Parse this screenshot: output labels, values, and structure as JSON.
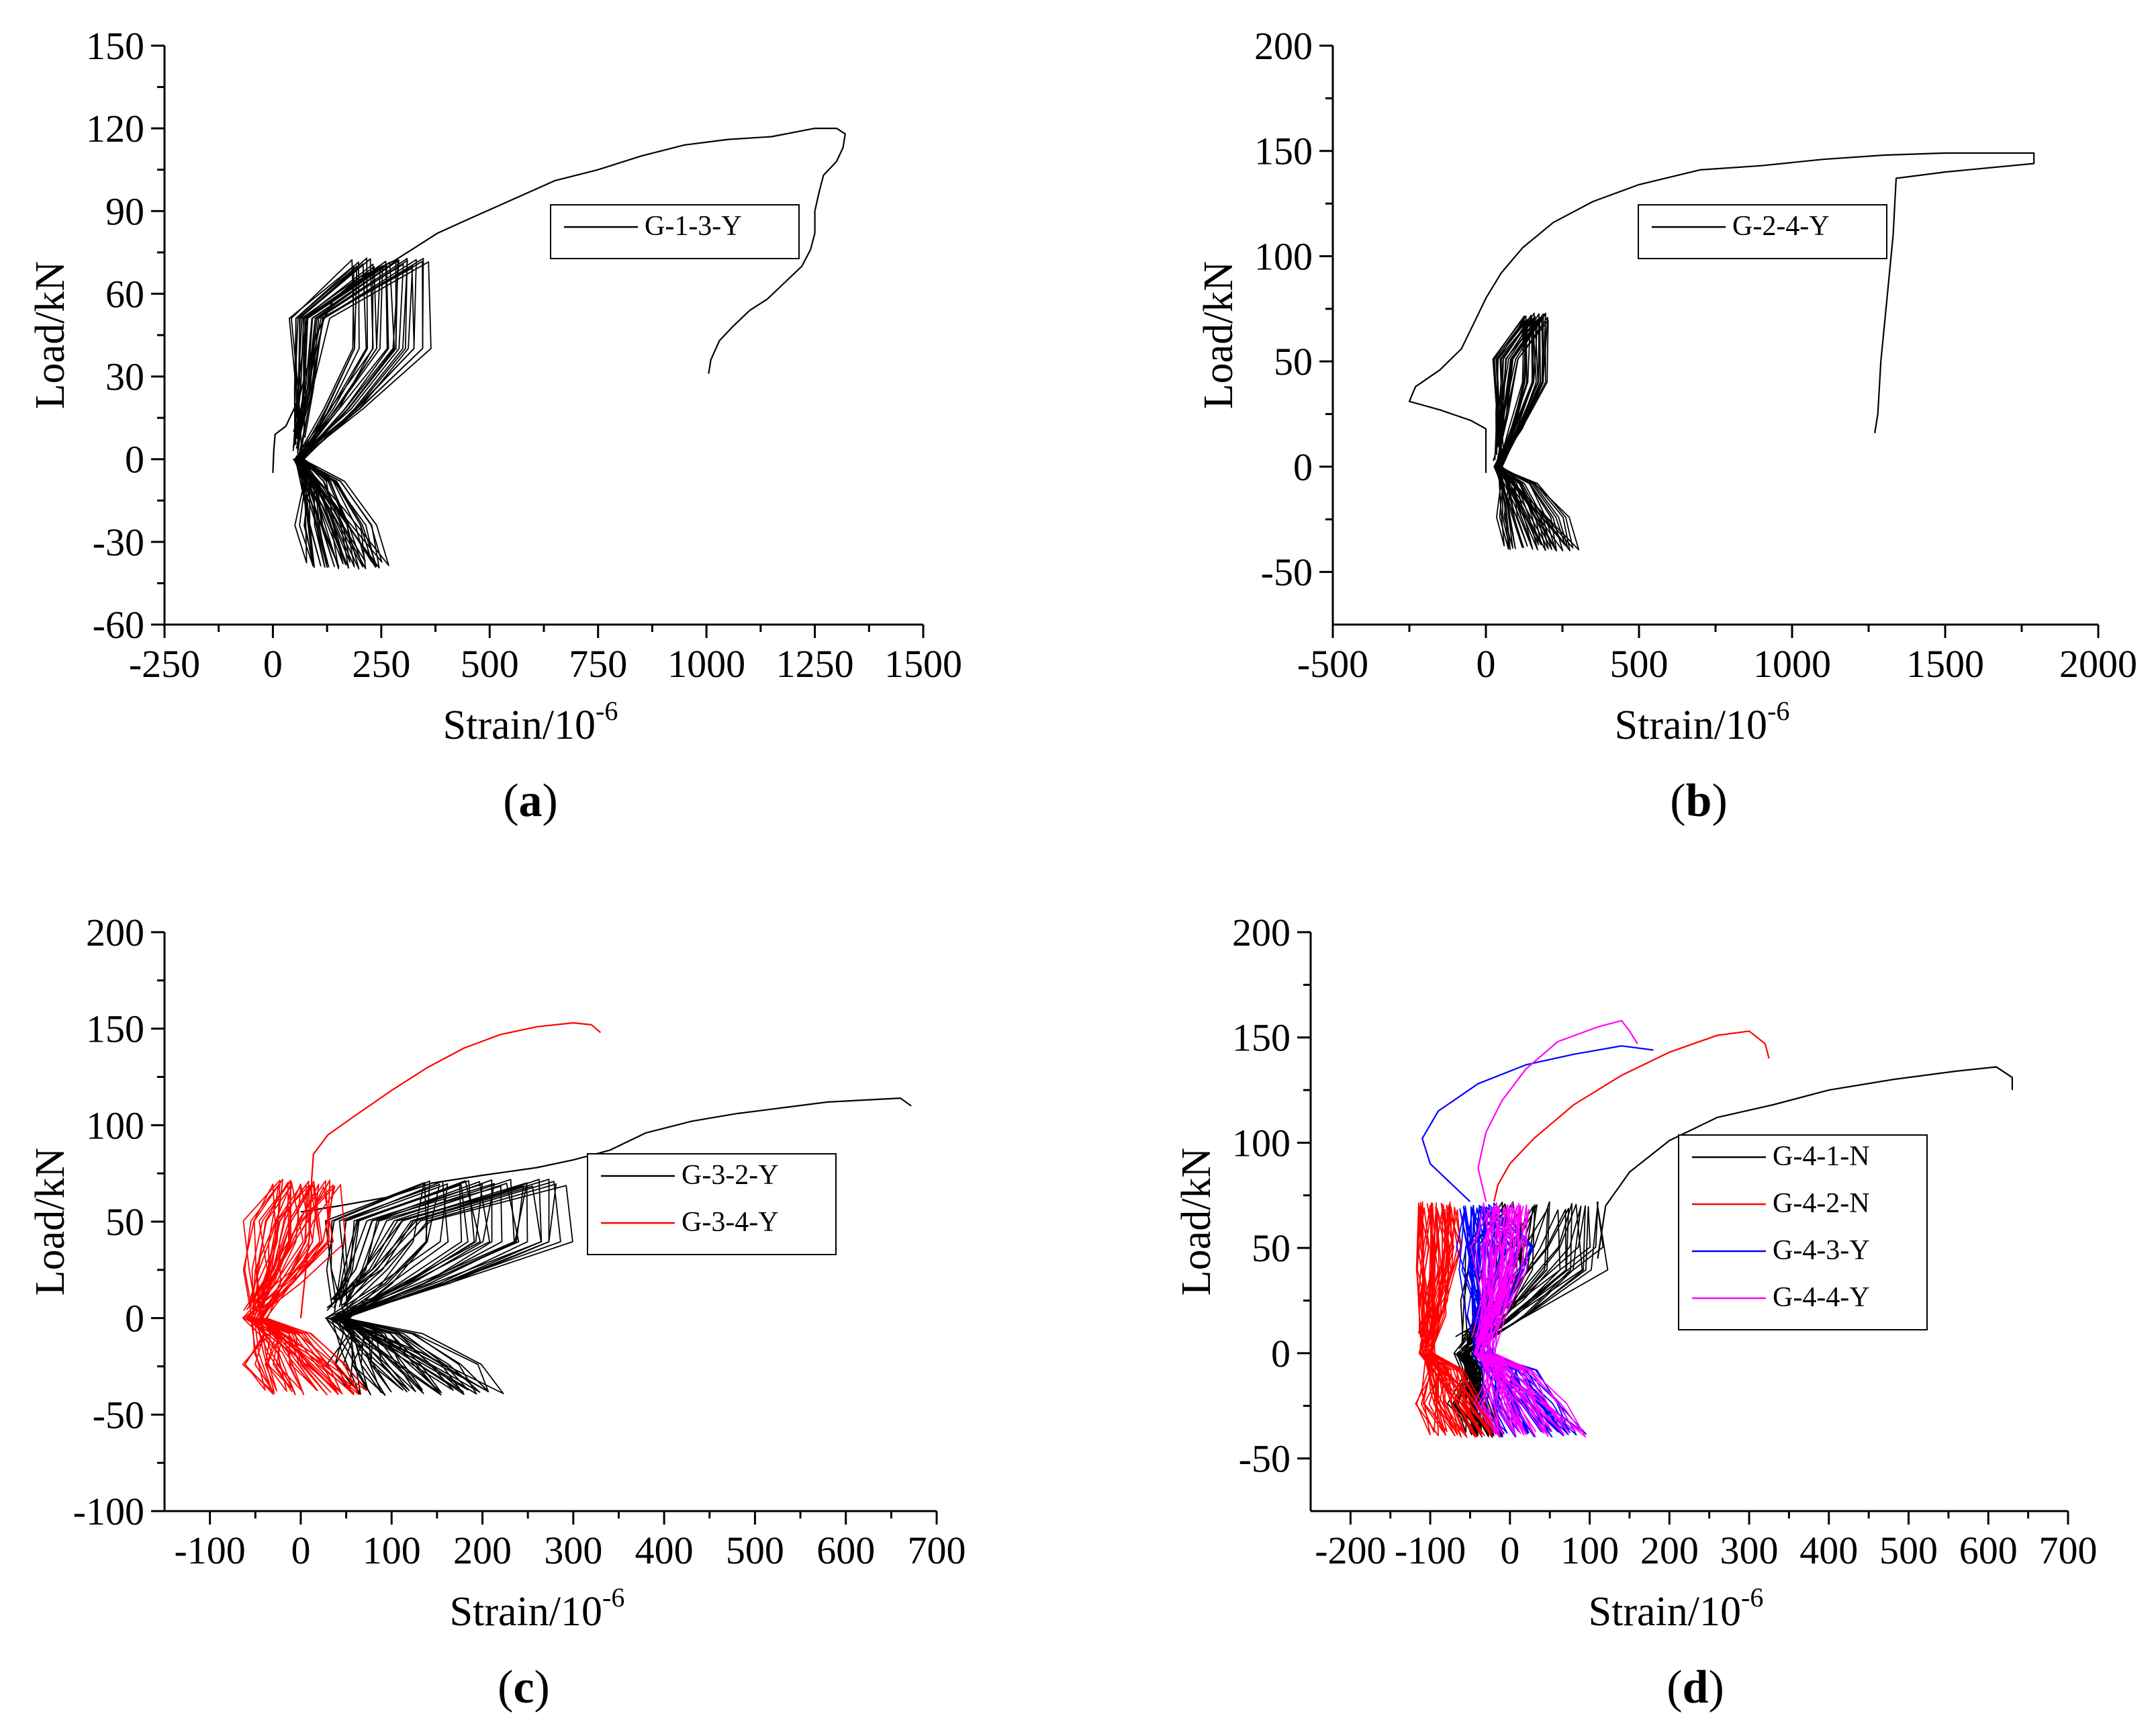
{
  "figure": {
    "panels": [
      "a",
      "b",
      "c",
      "d"
    ]
  },
  "chart_data": [
    {
      "id": "a",
      "type": "line",
      "panel_label": "a",
      "xlabel": "Strain/10",
      "xlabel_exp": "-6",
      "ylabel": "Load/kN",
      "xlim": [
        -250,
        1500
      ],
      "ylim": [
        -60,
        150
      ],
      "xticks": [
        -250,
        0,
        250,
        500,
        750,
        1000,
        1250,
        1500
      ],
      "yticks": [
        -60,
        -30,
        0,
        30,
        60,
        90,
        120,
        150
      ],
      "legend_position": "top-right",
      "series": [
        {
          "name": "G-1-3-Y",
          "color": "#000000",
          "monotonic": [
            [
              0,
              -5
            ],
            [
              2,
              3
            ],
            [
              5,
              9
            ],
            [
              30,
              12
            ],
            [
              60,
              22
            ],
            [
              100,
              45
            ],
            [
              140,
              58
            ],
            [
              200,
              66
            ],
            [
              280,
              72
            ],
            [
              320,
              76
            ],
            [
              380,
              82
            ],
            [
              450,
              87
            ],
            [
              550,
              94
            ],
            [
              650,
              101
            ],
            [
              750,
              105
            ],
            [
              850,
              110
            ],
            [
              950,
              114
            ],
            [
              1050,
              116
            ],
            [
              1150,
              117
            ],
            [
              1250,
              120
            ],
            [
              1300,
              120
            ],
            [
              1320,
              118
            ],
            [
              1315,
              113
            ],
            [
              1300,
              108
            ],
            [
              1270,
              103
            ],
            [
              1260,
              97
            ],
            [
              1250,
              90
            ],
            [
              1250,
              82
            ],
            [
              1240,
              76
            ],
            [
              1220,
              70
            ],
            [
              1180,
              64
            ],
            [
              1140,
              58
            ],
            [
              1100,
              54
            ],
            [
              1060,
              48
            ],
            [
              1030,
              43
            ],
            [
              1010,
              36
            ],
            [
              1005,
              31
            ]
          ],
          "cycles": {
            "count": 26,
            "upper_load": 73,
            "lower_load": -40,
            "pos_x0": 40,
            "pos_x1": 125,
            "neg_x0": 80,
            "neg_x1": 265,
            "upper_x0": 180,
            "upper_x1": 355
          }
        }
      ]
    },
    {
      "id": "b",
      "type": "line",
      "panel_label": "b",
      "xlabel": "Strain/10",
      "xlabel_exp": "-6",
      "ylabel": "Load/kN",
      "xlim": [
        -500,
        2000
      ],
      "ylim": [
        -75,
        200
      ],
      "xticks": [
        -500,
        0,
        500,
        1000,
        1500,
        2000
      ],
      "yticks": [
        -50,
        0,
        50,
        100,
        150,
        200
      ],
      "legend_position": "top-right",
      "series": [
        {
          "name": "G-2-4-Y",
          "color": "#000000",
          "monotonic": [
            [
              0,
              -3
            ],
            [
              0,
              18
            ],
            [
              -50,
              22
            ],
            [
              -150,
              27
            ],
            [
              -250,
              31
            ],
            [
              -230,
              38
            ],
            [
              -150,
              46
            ],
            [
              -80,
              56
            ],
            [
              -40,
              68
            ],
            [
              0,
              80
            ],
            [
              50,
              92
            ],
            [
              120,
              104
            ],
            [
              220,
              116
            ],
            [
              350,
              126
            ],
            [
              500,
              134
            ],
            [
              700,
              141
            ],
            [
              900,
              143
            ],
            [
              1100,
              146
            ],
            [
              1300,
              148
            ],
            [
              1500,
              149
            ],
            [
              1790,
              149
            ],
            [
              1790,
              144
            ],
            [
              1500,
              140
            ],
            [
              1340,
              137
            ],
            [
              1330,
              110
            ],
            [
              1310,
              80
            ],
            [
              1290,
              50
            ],
            [
              1280,
              25
            ],
            [
              1270,
              16
            ]
          ],
          "cycles": {
            "count": 24,
            "upper_load": 73,
            "lower_load": -40,
            "pos_x0": 20,
            "pos_x1": 105,
            "neg_x0": 60,
            "neg_x1": 300,
            "upper_x0": 120,
            "upper_x1": 200
          }
        }
      ]
    },
    {
      "id": "c",
      "type": "line",
      "panel_label": "c",
      "xlabel": "Strain/10",
      "xlabel_exp": "-6",
      "ylabel": "Load/kN",
      "xlim": [
        -150,
        700
      ],
      "ylim": [
        -100,
        200
      ],
      "xticks": [
        -100,
        0,
        100,
        200,
        300,
        400,
        500,
        600,
        700
      ],
      "yticks": [
        -100,
        -50,
        0,
        50,
        100,
        150,
        200
      ],
      "legend_position": "top-right",
      "series": [
        {
          "name": "G-3-2-Y",
          "color": "#000000",
          "monotonic": [
            [
              0,
              55
            ],
            [
              40,
              58
            ],
            [
              100,
              63
            ],
            [
              145,
              70
            ],
            [
              200,
              74
            ],
            [
              260,
              78
            ],
            [
              300,
              82
            ],
            [
              340,
              87
            ],
            [
              380,
              96
            ],
            [
              430,
              102
            ],
            [
              480,
              106
            ],
            [
              530,
              109
            ],
            [
              580,
              112
            ],
            [
              620,
              113
            ],
            [
              660,
              114
            ],
            [
              672,
              110
            ]
          ],
          "cycles": {
            "count": 26,
            "upper_load": 72,
            "lower_load": -40,
            "pos_x0": 30,
            "pos_x1": 140,
            "neg_x0": 55,
            "neg_x1": 220,
            "upper_x0": 130,
            "upper_x1": 290
          }
        },
        {
          "name": "G-3-4-Y",
          "color": "#ff0000",
          "monotonic": [
            [
              0,
              0
            ],
            [
              10,
              45
            ],
            [
              12,
              72
            ],
            [
              14,
              85
            ],
            [
              30,
              95
            ],
            [
              60,
              105
            ],
            [
              100,
              118
            ],
            [
              140,
              130
            ],
            [
              180,
              140
            ],
            [
              220,
              147
            ],
            [
              260,
              151
            ],
            [
              300,
              153
            ],
            [
              320,
              152
            ],
            [
              330,
              148
            ]
          ],
          "cycles": {
            "count": 24,
            "upper_load": 72,
            "lower_load": -40,
            "pos_x0": -60,
            "pos_x1": 15,
            "neg_x0": -40,
            "neg_x1": 75,
            "upper_x0": -30,
            "upper_x1": 40
          }
        }
      ]
    },
    {
      "id": "d",
      "type": "line",
      "panel_label": "d",
      "xlabel": "Strain/10",
      "xlabel_exp": "-6",
      "ylabel": "Load/kN",
      "xlim": [
        -250,
        700
      ],
      "ylim": [
        -75,
        200
      ],
      "xticks": [
        -200,
        -100,
        0,
        100,
        200,
        300,
        400,
        500,
        600,
        700
      ],
      "yticks": [
        -50,
        0,
        50,
        100,
        150,
        200
      ],
      "legend_position": "center-right",
      "series": [
        {
          "name": "G-4-1-N",
          "color": "#000000",
          "monotonic": [
            [
              110,
              45
            ],
            [
              120,
              70
            ],
            [
              150,
              86
            ],
            [
              200,
              101
            ],
            [
              260,
              112
            ],
            [
              330,
              118
            ],
            [
              400,
              125
            ],
            [
              480,
              130
            ],
            [
              560,
              134
            ],
            [
              610,
              136
            ],
            [
              630,
              131
            ],
            [
              630,
              125
            ]
          ],
          "cycles": {
            "count": 22,
            "upper_load": 72,
            "lower_load": -40,
            "pos_x0": -60,
            "pos_x1": 110,
            "neg_x0": -50,
            "neg_x1": -10,
            "upper_x0": -20,
            "upper_x1": 115
          }
        },
        {
          "name": "G-4-2-N",
          "color": "#ff0000",
          "monotonic": [
            [
              -20,
              72
            ],
            [
              -15,
              80
            ],
            [
              0,
              90
            ],
            [
              30,
              102
            ],
            [
              80,
              118
            ],
            [
              140,
              132
            ],
            [
              200,
              143
            ],
            [
              260,
              151
            ],
            [
              300,
              153
            ],
            [
              320,
              147
            ],
            [
              325,
              140
            ]
          ],
          "cycles": {
            "count": 24,
            "upper_load": 72,
            "lower_load": -40,
            "pos_x0": -115,
            "pos_x1": -60,
            "neg_x0": -95,
            "neg_x1": -10,
            "upper_x0": -115,
            "upper_x1": -70
          }
        },
        {
          "name": "G-4-3-Y",
          "color": "#0000ff",
          "monotonic": [
            [
              -50,
              72
            ],
            [
              -100,
              90
            ],
            [
              -110,
              102
            ],
            [
              -90,
              115
            ],
            [
              -40,
              128
            ],
            [
              20,
              137
            ],
            [
              80,
              142
            ],
            [
              140,
              146
            ],
            [
              180,
              144
            ]
          ],
          "cycles": {
            "count": 22,
            "upper_load": 72,
            "lower_load": -40,
            "pos_x0": -60,
            "pos_x1": 30,
            "neg_x0": -10,
            "neg_x1": 90,
            "upper_x0": -60,
            "upper_x1": -20
          }
        },
        {
          "name": "G-4-4-Y",
          "color": "#ff00ff",
          "monotonic": [
            [
              -30,
              72
            ],
            [
              -40,
              88
            ],
            [
              -30,
              105
            ],
            [
              -10,
              120
            ],
            [
              20,
              135
            ],
            [
              60,
              148
            ],
            [
              110,
              155
            ],
            [
              140,
              158
            ],
            [
              150,
              153
            ],
            [
              160,
              147
            ]
          ],
          "cycles": {
            "count": 22,
            "upper_load": 72,
            "lower_load": -40,
            "pos_x0": -45,
            "pos_x1": 15,
            "neg_x0": -20,
            "neg_x1": 90,
            "upper_x0": -30,
            "upper_x1": 20
          }
        }
      ]
    }
  ]
}
